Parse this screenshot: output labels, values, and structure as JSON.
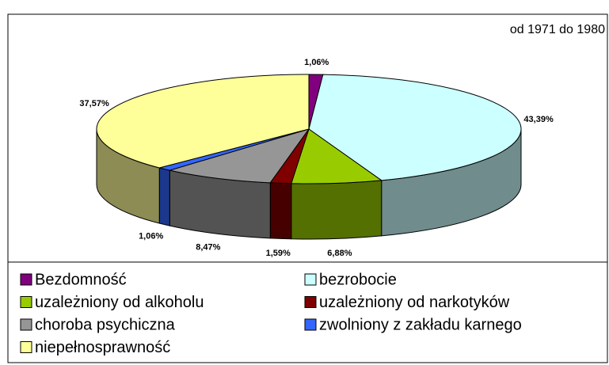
{
  "chart_data": {
    "type": "pie3d",
    "annotation": "od 1971 do 1980",
    "categories": [
      "Bezdomność",
      "bezrobocie",
      "uzależniony od alkoholu",
      "uzależniony od narkotyków",
      "choroba psychiczna",
      "zwolniony z zakładu karnego",
      "niepełnosprawność"
    ],
    "values": [
      1.06,
      43.39,
      6.88,
      1.59,
      8.47,
      1.06,
      37.57
    ],
    "value_labels": [
      "1,06%",
      "43,39%",
      "6,88%",
      "1,59%",
      "8,47%",
      "1,06%",
      "37,57%"
    ],
    "colors": [
      "#800080",
      "#ccffff",
      "#99cc00",
      "#800000",
      "#969696",
      "#3366ff",
      "#ffff99"
    ],
    "legend": "bottom"
  }
}
